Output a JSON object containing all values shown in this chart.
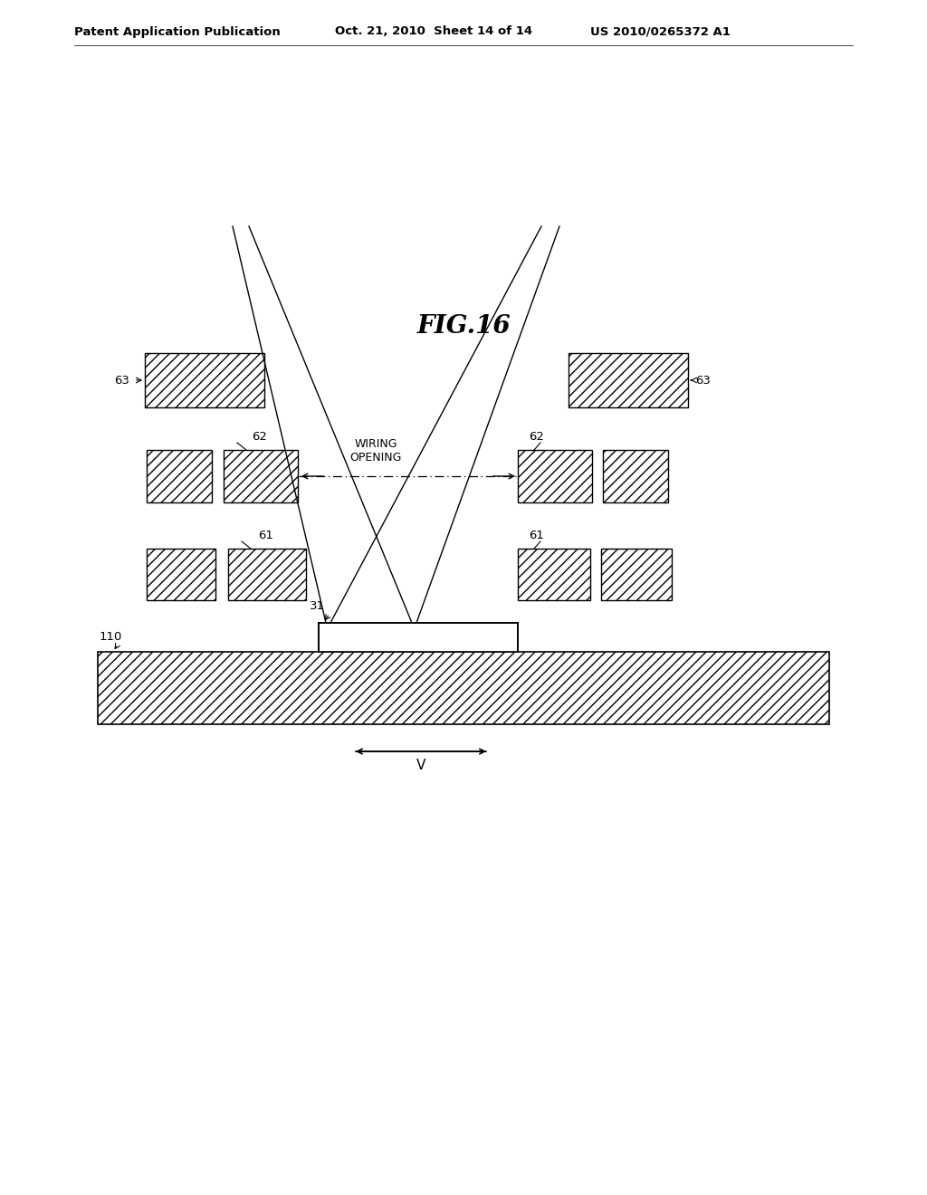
{
  "title": "FIG.16",
  "header_left": "Patent Application Publication",
  "header_center": "Oct. 21, 2010  Sheet 14 of 14",
  "header_right": "US 2010/0265372 A1",
  "background_color": "#ffffff",
  "hatch_pattern": "///",
  "line_color": "#000000",
  "labels": {
    "63_left": "63",
    "62_left": "62",
    "61_left": "61",
    "63_right": "63",
    "62_right": "62",
    "61_right": "61",
    "110": "110",
    "31": "31",
    "wiring": "WIRING\nOPENING",
    "V": "V"
  }
}
